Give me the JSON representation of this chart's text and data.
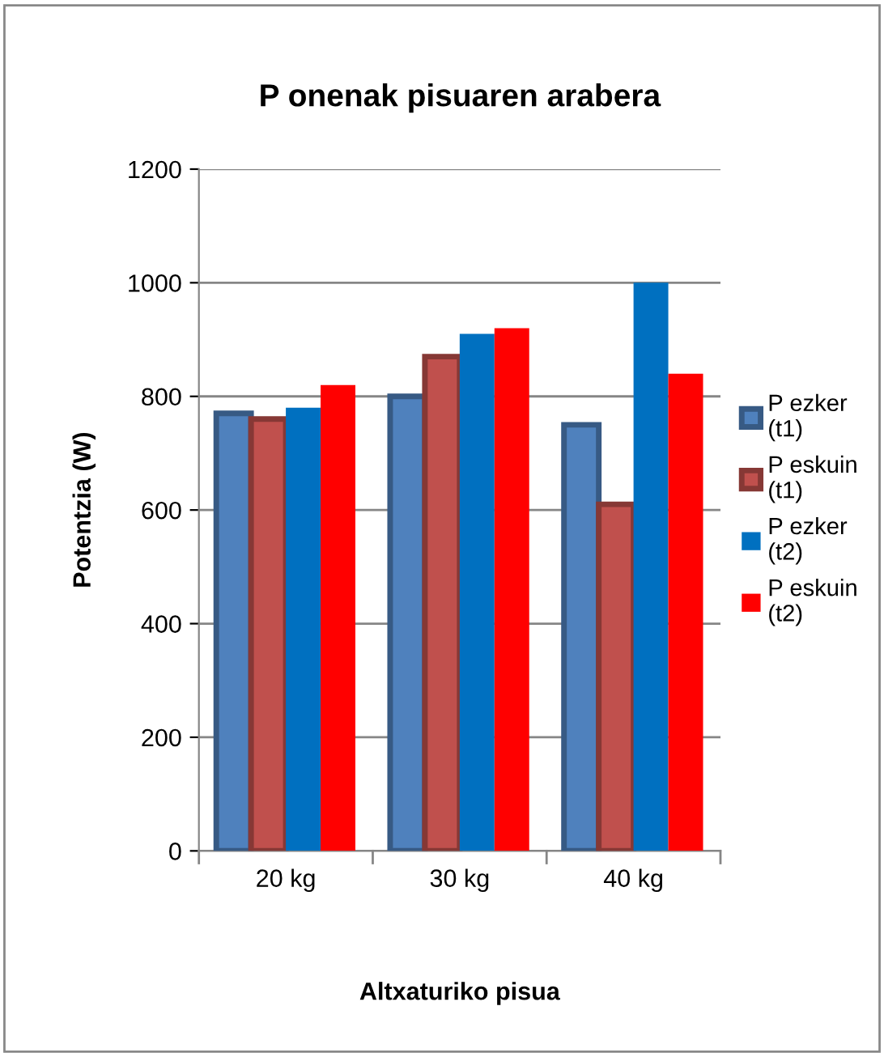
{
  "chart_data": {
    "type": "bar",
    "title": "P onenak pisuaren arabera",
    "xlabel": "Altxaturiko pisua",
    "ylabel": "Potentzia (W)",
    "categories": [
      "20 kg",
      "30 kg",
      "40 kg"
    ],
    "series": [
      {
        "name": "P ezker (t1)",
        "color": "#4f81bd",
        "values": [
          770,
          800,
          750
        ]
      },
      {
        "name": "P eskuin (t1)",
        "color": "#c0504d",
        "values": [
          760,
          870,
          610
        ]
      },
      {
        "name": "P ezker (t2)",
        "color": "#0070c0",
        "values": [
          780,
          910,
          1000
        ]
      },
      {
        "name": "P eskuin (t2)",
        "color": "#ff0000",
        "values": [
          820,
          920,
          840
        ]
      }
    ],
    "ylim": [
      0,
      1200
    ],
    "yticks": [
      0,
      200,
      400,
      600,
      800,
      1000,
      1200
    ],
    "grid": "y",
    "legend": "right"
  }
}
